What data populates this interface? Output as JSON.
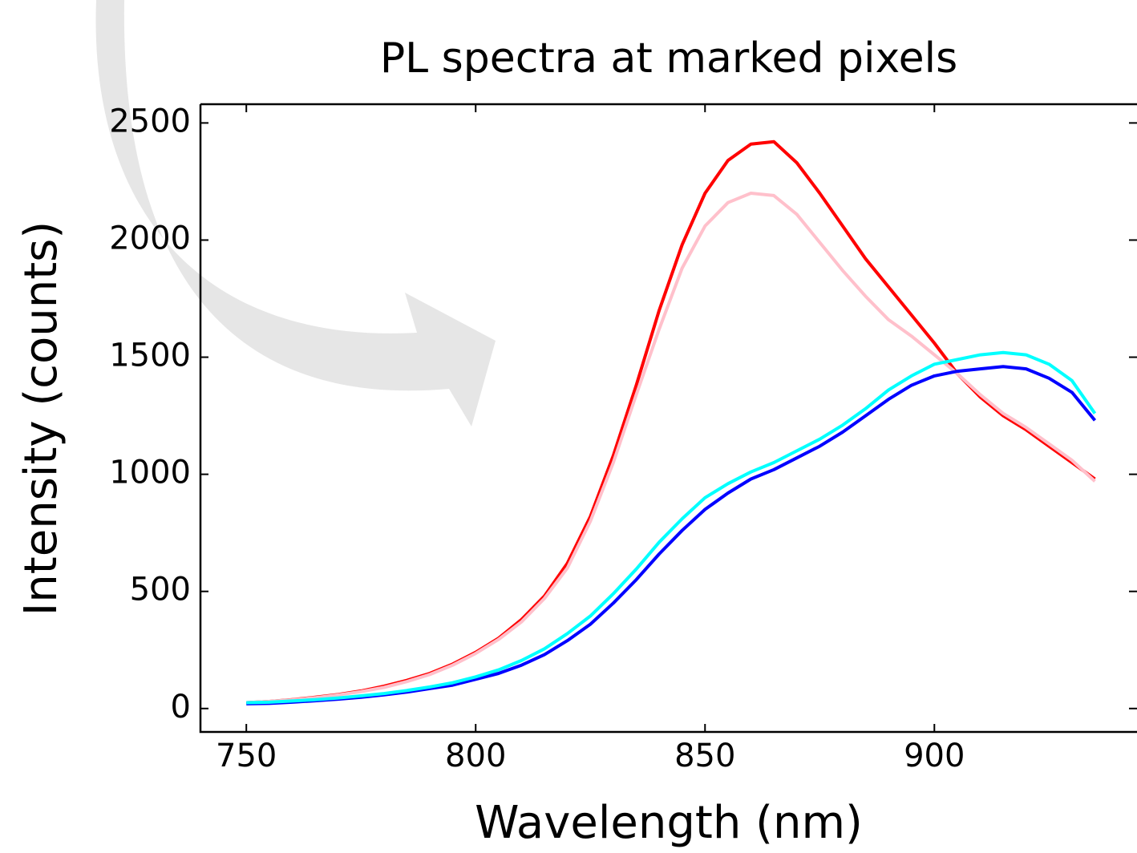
{
  "chart_data": {
    "type": "line",
    "title": "PL spectra at marked pixels",
    "xlabel": "Wavelength (nm)",
    "ylabel": "Intensity (counts)",
    "x": [
      750,
      755,
      760,
      765,
      770,
      775,
      780,
      785,
      790,
      795,
      800,
      805,
      810,
      815,
      820,
      825,
      830,
      835,
      840,
      845,
      850,
      855,
      860,
      865,
      870,
      875,
      880,
      885,
      890,
      895,
      900,
      905,
      910,
      915,
      920,
      925,
      930,
      935
    ],
    "series": [
      {
        "color": "#ff0000",
        "values": [
          25,
          30,
          38,
          48,
          60,
          75,
          95,
          120,
          150,
          190,
          240,
          300,
          380,
          480,
          620,
          820,
          1080,
          1380,
          1700,
          1980,
          2200,
          2340,
          2410,
          2420,
          2330,
          2200,
          2060,
          1920,
          1800,
          1680,
          1560,
          1430,
          1330,
          1250,
          1190,
          1120,
          1050,
          980
        ]
      },
      {
        "color": "#ffc0cb",
        "values": [
          25,
          30,
          37,
          46,
          58,
          72,
          90,
          115,
          145,
          185,
          235,
          295,
          370,
          470,
          600,
          800,
          1050,
          1340,
          1620,
          1880,
          2060,
          2160,
          2200,
          2190,
          2110,
          1990,
          1870,
          1760,
          1660,
          1590,
          1510,
          1430,
          1340,
          1260,
          1200,
          1130,
          1060,
          970
        ]
      },
      {
        "color": "#0000ff",
        "values": [
          20,
          22,
          27,
          33,
          40,
          48,
          58,
          70,
          85,
          100,
          125,
          150,
          185,
          230,
          290,
          360,
          450,
          550,
          660,
          760,
          850,
          920,
          980,
          1020,
          1070,
          1120,
          1180,
          1250,
          1320,
          1380,
          1420,
          1440,
          1450,
          1460,
          1450,
          1410,
          1350,
          1230
        ]
      },
      {
        "color": "#00ffff",
        "values": [
          25,
          27,
          32,
          38,
          45,
          54,
          64,
          77,
          92,
          110,
          135,
          165,
          205,
          255,
          320,
          395,
          490,
          595,
          710,
          810,
          900,
          960,
          1010,
          1050,
          1100,
          1150,
          1210,
          1280,
          1360,
          1420,
          1470,
          1490,
          1510,
          1520,
          1510,
          1470,
          1400,
          1260
        ]
      }
    ],
    "xlim": [
      740,
      944
    ],
    "xticks": [
      750,
      800,
      850,
      900
    ],
    "ylim": [
      -100,
      2580
    ],
    "yticks": [
      0,
      500,
      1000,
      1500,
      2000,
      2500
    ]
  }
}
